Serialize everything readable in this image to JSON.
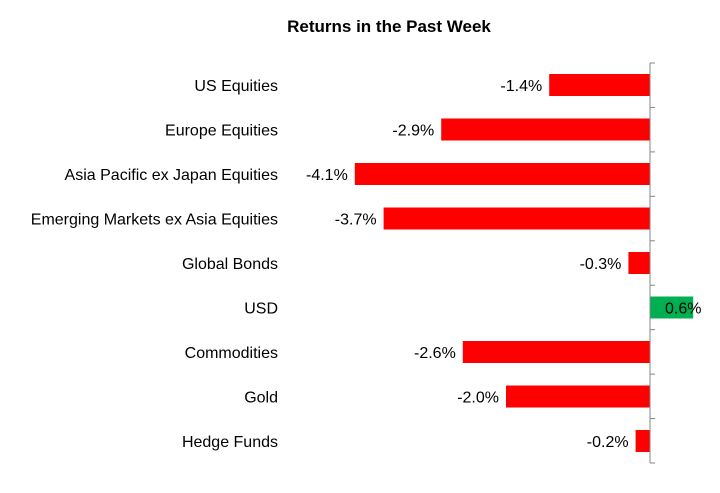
{
  "chart_data": {
    "type": "bar",
    "orientation": "horizontal",
    "title": "Returns in the Past Week",
    "xlabel": "",
    "ylabel": "",
    "categories": [
      "US Equities",
      "Europe Equities",
      "Asia Pacific ex Japan Equities",
      "Emerging Markets ex Asia Equities",
      "Global Bonds",
      "USD",
      "Commodities",
      "Gold",
      "Hedge Funds"
    ],
    "values": [
      -1.4,
      -2.9,
      -4.1,
      -3.7,
      -0.3,
      0.6,
      -2.6,
      -2.0,
      -0.2
    ],
    "labels": [
      "-1.4%",
      "-2.9%",
      "-4.1%",
      "-3.7%",
      "-0.3%",
      "0.6%",
      "-2.6%",
      "-2.0%",
      "-0.2%"
    ],
    "unit": "%",
    "xlim": [
      -4.1,
      0.6
    ],
    "grid": false,
    "legend": "none",
    "colors": {
      "negative": "#ff0000",
      "positive": "#00b050",
      "axis": "#868686"
    }
  }
}
